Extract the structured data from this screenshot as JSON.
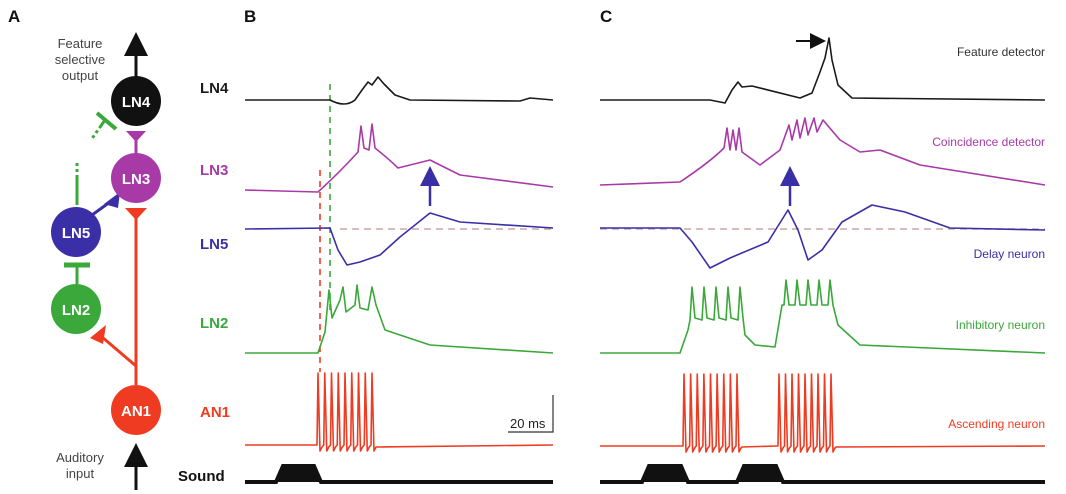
{
  "colors": {
    "LN4": "#1a1a1a",
    "LN3": "#a83aa8",
    "LN5": "#3b2fa8",
    "LN2": "#3aa83a",
    "AN1": "#ee3b22",
    "grey": "#c8a8a8"
  },
  "panels": {
    "a": "A",
    "b": "B",
    "c": "C"
  },
  "diagram": {
    "output_label": [
      "Feature",
      "selective",
      "output"
    ],
    "input_label": [
      "Auditory",
      "input"
    ],
    "nodes": {
      "ln4": "LN4",
      "ln3": "LN3",
      "ln5": "LN5",
      "ln2": "LN2",
      "an1": "AN1"
    }
  },
  "row_labels": {
    "ln4": "LN4",
    "ln3": "LN3",
    "ln5": "LN5",
    "ln2": "LN2",
    "an1": "AN1",
    "sound": "Sound"
  },
  "right_labels": {
    "ln4": "Feature detector",
    "ln3": "Coincidence detector",
    "ln5": "Delay neuron",
    "ln2": "Inhibitory neuron",
    "an1": "Ascending neuron"
  },
  "scale_bar": "20 ms"
}
